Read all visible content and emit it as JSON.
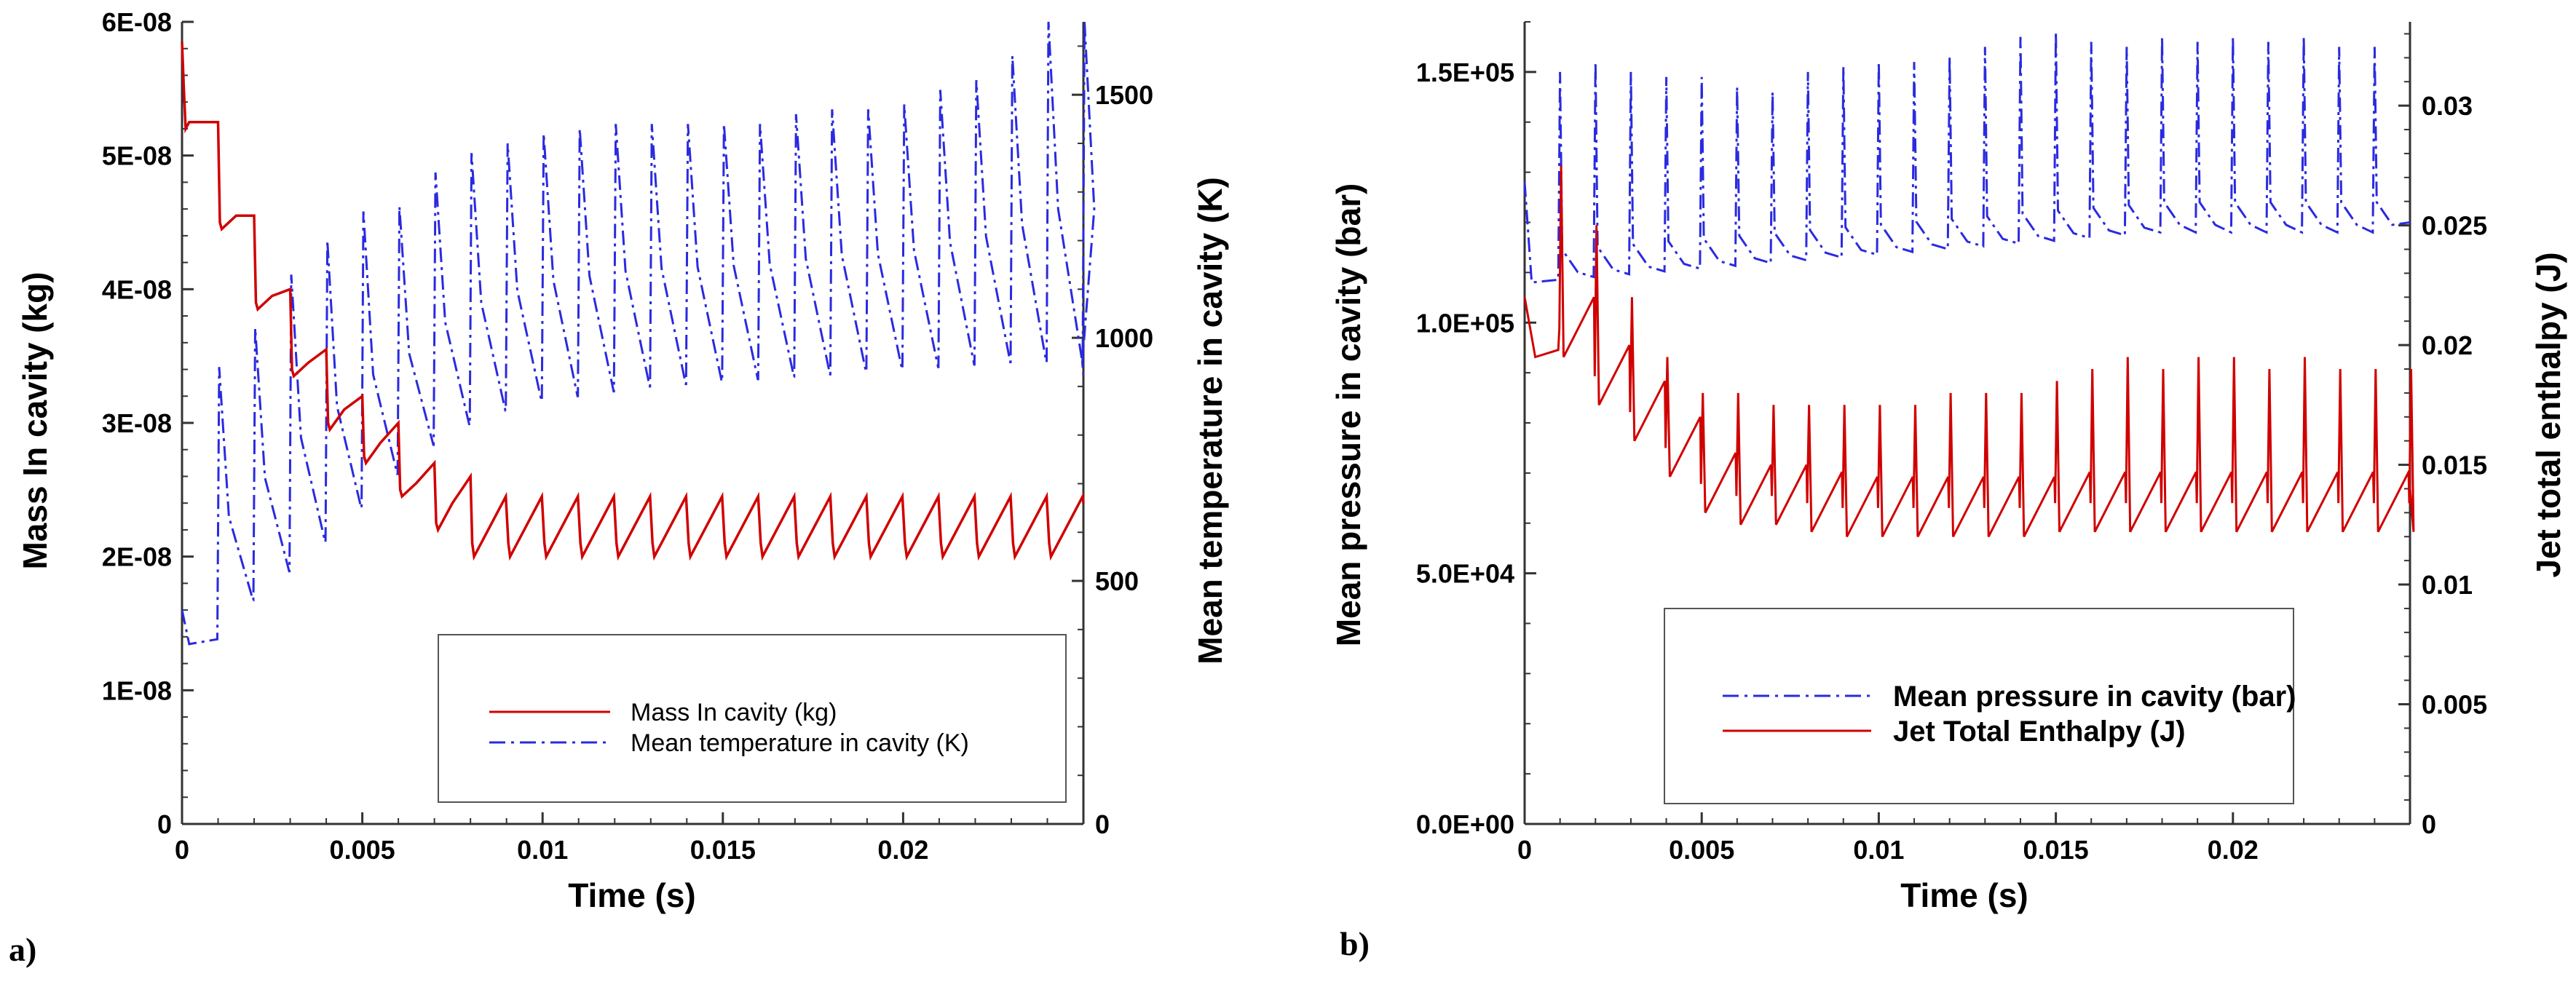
{
  "chart_data": [
    {
      "panel": "a)",
      "type": "line",
      "xlabel": "Time (s)",
      "ylabel": "Mass In cavity (kg)",
      "y2label": "Mean temperature in cavity (K)",
      "xlim": [
        0,
        0.025
      ],
      "ylim": [
        0,
        6e-08
      ],
      "y2lim": [
        0,
        1650
      ],
      "x_ticks": [
        0,
        0.005,
        0.01,
        0.015,
        0.02
      ],
      "x_tick_labels": [
        "0",
        "0.005",
        "0.01",
        "0.015",
        "0.02"
      ],
      "y_ticks": [
        0,
        1e-08,
        2e-08,
        3e-08,
        4e-08,
        5e-08,
        6e-08
      ],
      "y_tick_labels": [
        "0",
        "1E-08",
        "2E-08",
        "3E-08",
        "4E-08",
        "5E-08",
        "6E-08"
      ],
      "y2_ticks": [
        0,
        500,
        1000,
        1500
      ],
      "y2_tick_labels": [
        "0",
        "500",
        "1000",
        "1500"
      ],
      "legend": [
        "Mass In cavity (kg)",
        "Mean temperature in cavity (K)"
      ],
      "series": [
        {
          "name": "Mass In cavity (kg)",
          "axis": "left",
          "color": "#d00000",
          "style": "solid",
          "cycle_period": 0.001,
          "points": [
            [
              0,
              5.85e-08
            ],
            [
              5e-05,
              5.5e-08
            ],
            [
              0.0001,
              5.2e-08
            ],
            [
              0.0002,
              5.25e-08
            ],
            [
              0.0005,
              5.25e-08
            ],
            [
              0.001,
              5.25e-08
            ],
            [
              0.00105,
              4.5e-08
            ],
            [
              0.0011,
              4.45e-08
            ],
            [
              0.0015,
              4.55e-08
            ],
            [
              0.002,
              4.55e-08
            ],
            [
              0.00205,
              3.9e-08
            ],
            [
              0.0021,
              3.85e-08
            ],
            [
              0.0025,
              3.95e-08
            ],
            [
              0.003,
              4e-08
            ],
            [
              0.00305,
              3.4e-08
            ],
            [
              0.0031,
              3.35e-08
            ],
            [
              0.0035,
              3.45e-08
            ],
            [
              0.004,
              3.55e-08
            ],
            [
              0.00405,
              3e-08
            ],
            [
              0.0041,
              2.95e-08
            ],
            [
              0.0045,
              3.1e-08
            ],
            [
              0.005,
              3.2e-08
            ],
            [
              0.00505,
              2.75e-08
            ],
            [
              0.0051,
              2.7e-08
            ],
            [
              0.0055,
              2.85e-08
            ],
            [
              0.006,
              3e-08
            ],
            [
              0.00605,
              2.5e-08
            ],
            [
              0.0061,
              2.45e-08
            ],
            [
              0.0065,
              2.55e-08
            ],
            [
              0.007,
              2.7e-08
            ],
            [
              0.00705,
              2.25e-08
            ],
            [
              0.0071,
              2.2e-08
            ],
            [
              0.0075,
              2.4e-08
            ],
            [
              0.008,
              2.6e-08
            ]
          ],
          "cycles_from_0.008": {
            "min": 2e-08,
            "peak": 2.45e-08
          }
        },
        {
          "name": "Mean temperature in cavity (K)",
          "axis": "right",
          "color": "#2a2ae0",
          "style": "dashdot",
          "cycle_period": 0.001,
          "cycle_minima": [
            380,
            460,
            520,
            580,
            650,
            720,
            780,
            820,
            850,
            870,
            880,
            890,
            900,
            905,
            910,
            915,
            920,
            925,
            930,
            935,
            940,
            945,
            950,
            950,
            950
          ],
          "cycle_peaks": [
            940,
            1020,
            1130,
            1200,
            1260,
            1270,
            1340,
            1380,
            1400,
            1420,
            1430,
            1440,
            1440,
            1440,
            1440,
            1440,
            1460,
            1470,
            1470,
            1480,
            1510,
            1530,
            1580,
            1650,
            1650
          ]
        }
      ]
    },
    {
      "panel": "b)",
      "type": "line",
      "xlabel": "Time (s)",
      "ylabel": "Mean pressure in cavity (bar)",
      "y2label": "Jet total enthalpy (J)",
      "xlim": [
        0,
        0.025
      ],
      "ylim": [
        0,
        160000.0
      ],
      "y2lim": [
        0,
        0.0335
      ],
      "x_ticks": [
        0,
        0.005,
        0.01,
        0.015,
        0.02
      ],
      "x_tick_labels": [
        "0",
        "0.005",
        "0.01",
        "0.015",
        "0.02"
      ],
      "y_ticks": [
        0,
        50000,
        100000,
        150000
      ],
      "y_tick_labels": [
        "0.0E+00",
        "5.0E+04",
        "1.0E+05",
        "1.5E+05"
      ],
      "y2_ticks": [
        0,
        0.005,
        0.01,
        0.015,
        0.02,
        0.025,
        0.03
      ],
      "y2_tick_labels": [
        "0",
        "0.005",
        "0.01",
        "0.015",
        "0.02",
        "0.025",
        "0.03"
      ],
      "legend": [
        "Mean pressure in cavity (bar)",
        "Jet Total Enthalpy (J)"
      ],
      "series": [
        {
          "name": "Mean pressure in cavity (bar)",
          "axis": "left",
          "color": "#2a2ae0",
          "style": "dashdot",
          "cycle_period": 0.001,
          "baseline_start": 108000,
          "baseline_end": 118000,
          "cycle_peaks": [
            150000,
            152000,
            150000,
            149000,
            149000,
            147000,
            146000,
            150000,
            151000,
            152000,
            152000,
            153000,
            155000,
            157000,
            158000,
            156000,
            155000,
            157000,
            156000,
            157000,
            156000,
            157000,
            155000,
            155000
          ]
        },
        {
          "name": "Jet Total Enthalpy (J)",
          "axis": "right",
          "color": "#d00000",
          "style": "solid",
          "cycle_period": 0.001,
          "start_value": 0.022,
          "cycle_minima": [
            0.0195,
            0.0175,
            0.016,
            0.0145,
            0.013,
            0.0125,
            0.0125,
            0.0122,
            0.012,
            0.012,
            0.012,
            0.012,
            0.012,
            0.012,
            0.0122,
            0.0122,
            0.0122,
            0.0122,
            0.0122,
            0.0122,
            0.0122,
            0.0122,
            0.0122,
            0.0122,
            0.0122
          ],
          "cycle_peaks": [
            0.0275,
            0.025,
            0.022,
            0.0195,
            0.018,
            0.018,
            0.0175,
            0.0175,
            0.0175,
            0.0175,
            0.0175,
            0.018,
            0.018,
            0.018,
            0.0185,
            0.019,
            0.0195,
            0.019,
            0.0195,
            0.0195,
            0.019,
            0.0195,
            0.019,
            0.019,
            0.019
          ]
        }
      ]
    }
  ]
}
